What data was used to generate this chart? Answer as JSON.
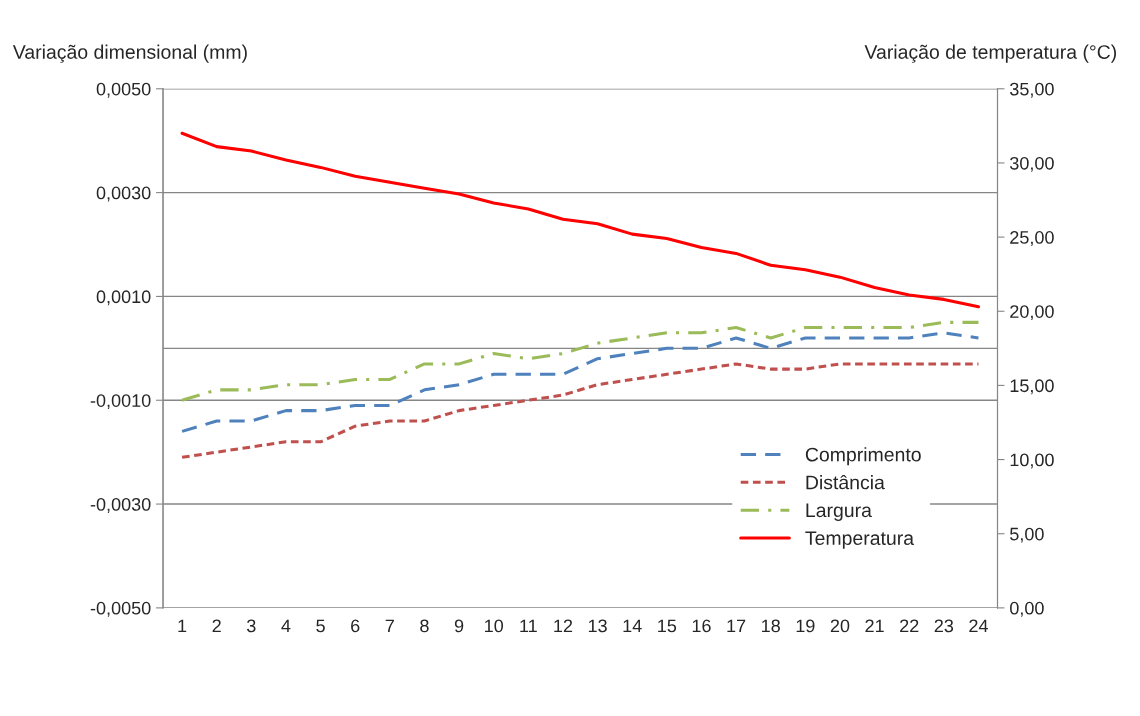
{
  "chart_data": {
    "type": "line",
    "ylabel": "Variação dimensional (mm)",
    "y2label": "Variação de temperatura (°C)",
    "categories": [
      "1",
      "2",
      "3",
      "4",
      "5",
      "6",
      "7",
      "8",
      "9",
      "10",
      "11",
      "12",
      "13",
      "14",
      "15",
      "16",
      "17",
      "18",
      "19",
      "20",
      "21",
      "22",
      "23",
      "24"
    ],
    "series": [
      {
        "name": "Comprimento",
        "color": "#4f81bd",
        "line_style": "dashed",
        "values": [
          -0.0016,
          -0.0014,
          -0.0014,
          -0.0012,
          -0.0012,
          -0.0011,
          -0.0011,
          -0.0008,
          -0.0007,
          -0.0005,
          -0.0005,
          -0.0005,
          -0.0002,
          -0.0001,
          0,
          0,
          0.0002,
          0,
          0.0002,
          0.0002,
          0.0002,
          0.0002,
          0.0003,
          0.0002
        ]
      },
      {
        "name": "Distância",
        "color": "#c0504d",
        "line_style": "dotted",
        "values": [
          -0.0021,
          -0.002,
          -0.0019,
          -0.0018,
          -0.0018,
          -0.0015,
          -0.0014,
          -0.0014,
          -0.0012,
          -0.0011,
          -0.001,
          -0.0009,
          -0.0007,
          -0.0006,
          -0.0005,
          -0.0004,
          -0.0003,
          -0.0004,
          -0.0004,
          -0.0003,
          -0.0003,
          -0.0003,
          -0.0003,
          -0.0003
        ]
      },
      {
        "name": "Largura",
        "color": "#9bbb59",
        "line_style": "dashdot",
        "values": [
          -0.001,
          -0.0008,
          -0.0008,
          -0.0007,
          -0.0007,
          -0.0006,
          -0.0006,
          -0.0003,
          -0.0003,
          -0.0001,
          -0.0002,
          -0.0001,
          0.0001,
          0.0002,
          0.0003,
          0.0003,
          0.0004,
          0.0002,
          0.0004,
          0.0004,
          0.0004,
          0.0004,
          0.0005,
          0.0005
        ]
      },
      {
        "name": "Temperatura",
        "color": "#ff0000",
        "line_style": "solid",
        "axis": "y2",
        "values": [
          32.0,
          31.1,
          30.8,
          30.2,
          29.7,
          29.1,
          28.7,
          28.3,
          27.9,
          27.3,
          26.9,
          26.2,
          25.9,
          25.2,
          24.9,
          24.3,
          23.9,
          23.1,
          22.8,
          22.3,
          21.6,
          21.1,
          20.8,
          20.3
        ]
      }
    ],
    "ylim": [
      -0.005,
      0.005
    ],
    "yticks": [
      {
        "value": -0.005,
        "label": "-0,0050"
      },
      {
        "value": -0.003,
        "label": "-0,0030"
      },
      {
        "value": -0.001,
        "label": "-0,0010"
      },
      {
        "value": 0.001,
        "label": "0,0010"
      },
      {
        "value": 0.003,
        "label": "0,0030"
      },
      {
        "value": 0.005,
        "label": "0,0050"
      }
    ],
    "y2lim": [
      0,
      35
    ],
    "y2ticks": [
      {
        "value": 0,
        "label": "0,00"
      },
      {
        "value": 5,
        "label": "5,00"
      },
      {
        "value": 10,
        "label": "10,00"
      },
      {
        "value": 15,
        "label": "15,00"
      },
      {
        "value": 20,
        "label": "20,00"
      },
      {
        "value": 25,
        "label": "25,00"
      },
      {
        "value": 30,
        "label": "30,00"
      },
      {
        "value": 35,
        "label": "35,00"
      }
    ],
    "ref_lines": [
      {
        "axis": "y",
        "value": 0,
        "color": "#868686"
      }
    ],
    "grid": "y",
    "legend": "bottom right"
  }
}
